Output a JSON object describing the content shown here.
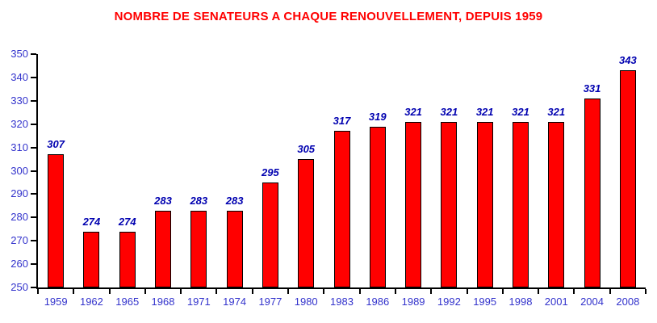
{
  "chart_data": {
    "type": "bar",
    "title": "NOMBRE DE SENATEURS A CHAQUE RENOUVELLEMENT, DEPUIS 1959",
    "categories": [
      "1959",
      "1962",
      "1965",
      "1968",
      "1971",
      "1974",
      "1977",
      "1980",
      "1983",
      "1986",
      "1989",
      "1992",
      "1995",
      "1998",
      "2001",
      "2004",
      "2008"
    ],
    "values": [
      307,
      274,
      274,
      283,
      283,
      283,
      295,
      305,
      317,
      319,
      321,
      321,
      321,
      321,
      321,
      331,
      343
    ],
    "xlabel": "",
    "ylabel": "",
    "ylim": [
      250,
      350
    ],
    "ytick_step": 10,
    "grid": false,
    "legend": "none",
    "data_labels_shown": true,
    "colors": {
      "title": "#FF0000",
      "bar_fill": "#FF0000",
      "bar_border": "#000000",
      "axis": "#000000",
      "tick_label": "#3333CC",
      "value_label": "#0000B0",
      "background": "#FFFFFF"
    }
  }
}
